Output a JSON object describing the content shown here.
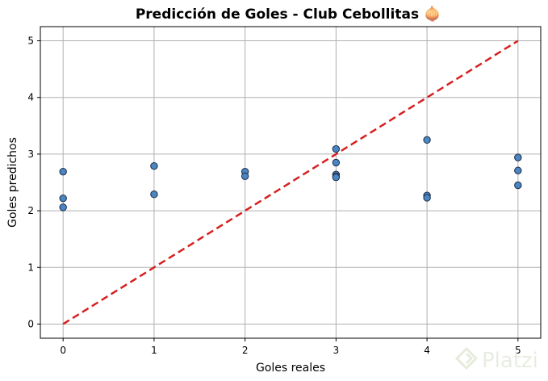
{
  "chart_data": {
    "type": "scatter",
    "title": "Predicción de Goles - Club Cebollitas 🧅",
    "xlabel": "Goles reales",
    "ylabel": "Goles predichos",
    "xlim": [
      -0.25,
      5.25
    ],
    "ylim": [
      -0.25,
      5.25
    ],
    "xticks": [
      "0",
      "1",
      "2",
      "3",
      "4",
      "5"
    ],
    "yticks": [
      "0",
      "1",
      "2",
      "3",
      "4",
      "5"
    ],
    "grid": true,
    "series": [
      {
        "color": "#4a86c4",
        "points": [
          {
            "x": 0,
            "y": 2.69
          },
          {
            "x": 0,
            "y": 2.22
          },
          {
            "x": 0,
            "y": 2.06
          },
          {
            "x": 1,
            "y": 2.79
          },
          {
            "x": 1,
            "y": 2.29
          },
          {
            "x": 2,
            "y": 2.69
          },
          {
            "x": 2,
            "y": 2.61
          },
          {
            "x": 3,
            "y": 3.09
          },
          {
            "x": 3,
            "y": 2.85
          },
          {
            "x": 3,
            "y": 2.64
          },
          {
            "x": 3,
            "y": 2.61
          },
          {
            "x": 3,
            "y": 2.59
          },
          {
            "x": 4,
            "y": 3.25
          },
          {
            "x": 4,
            "y": 2.27
          },
          {
            "x": 4,
            "y": 2.23
          },
          {
            "x": 5,
            "y": 2.94
          },
          {
            "x": 5,
            "y": 2.71
          },
          {
            "x": 5,
            "y": 2.45
          }
        ]
      }
    ],
    "reference_line": {
      "x": [
        0,
        5
      ],
      "y": [
        0,
        5
      ],
      "color": "#d62020",
      "style": "dashed"
    }
  },
  "watermark": {
    "text": "Platzi",
    "icon": "platzi-logo-icon"
  }
}
